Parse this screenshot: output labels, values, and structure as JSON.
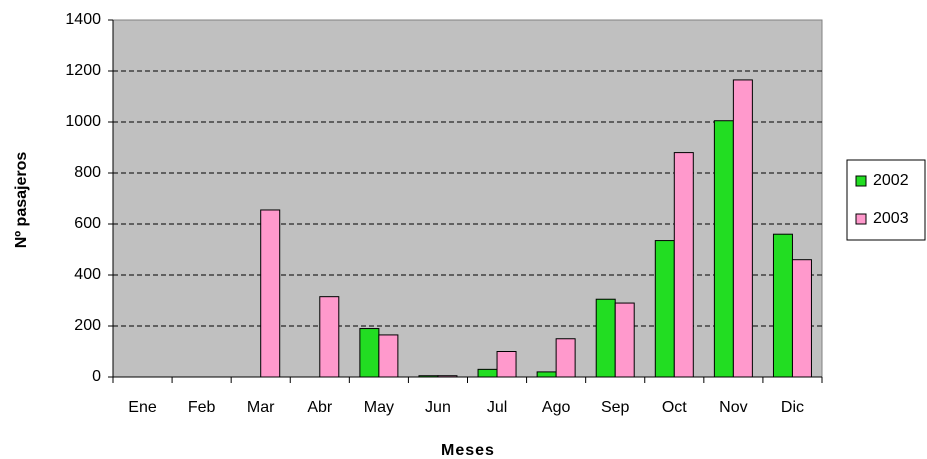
{
  "chart_data": {
    "type": "bar",
    "categories": [
      "Ene",
      "Feb",
      "Mar",
      "Abr",
      "May",
      "Jun",
      "Jul",
      "Ago",
      "Sep",
      "Oct",
      "Nov",
      "Dic"
    ],
    "series": [
      {
        "name": "2002",
        "color": "#22dd22",
        "values": [
          0,
          0,
          0,
          0,
          190,
          5,
          30,
          20,
          305,
          535,
          1005,
          560
        ]
      },
      {
        "name": "2003",
        "color": "#ff99cc",
        "values": [
          0,
          0,
          655,
          315,
          165,
          5,
          100,
          150,
          290,
          880,
          1165,
          460
        ]
      }
    ],
    "xlabel": "Meses",
    "ylabel": "Nº pasajeros",
    "ylim": [
      0,
      1400
    ],
    "yticks": [
      0,
      200,
      400,
      600,
      800,
      1000,
      1200,
      1400
    ],
    "grid": true,
    "legend": "right"
  }
}
